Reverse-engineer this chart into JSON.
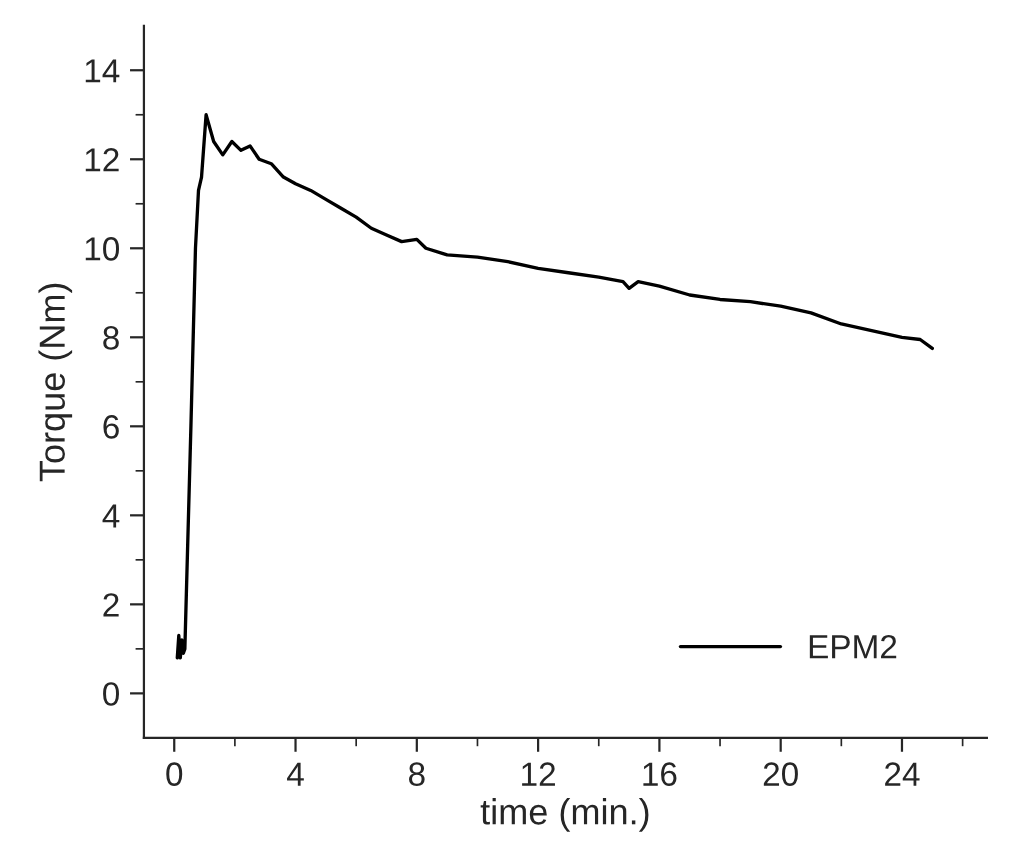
{
  "chart_data": {
    "type": "line",
    "xlabel": "time (min.)",
    "ylabel": "Torque (Nm)",
    "xlim": [
      -1,
      26.8
    ],
    "ylim": [
      -1,
      15
    ],
    "xticks": [
      0,
      4,
      8,
      12,
      16,
      20,
      24
    ],
    "yticks": [
      0,
      2,
      4,
      6,
      8,
      10,
      12,
      14
    ],
    "legend": "bottom right",
    "grid": false,
    "series": [
      {
        "name": "EPM2",
        "color": "#000000",
        "x": [
          0.1,
          0.15,
          0.2,
          0.25,
          0.3,
          0.35,
          0.55,
          0.7,
          0.8,
          0.9,
          1.05,
          1.3,
          1.6,
          1.9,
          2.2,
          2.5,
          2.8,
          3.2,
          3.6,
          4,
          4.5,
          5,
          5.5,
          6,
          6.5,
          7,
          7.5,
          8,
          8.3,
          9,
          10,
          11,
          12,
          13,
          14,
          14.8,
          15,
          15.3,
          16,
          17,
          18,
          19,
          20,
          21,
          22,
          23,
          24,
          24.6,
          25
        ],
        "values": [
          0.8,
          1.3,
          0.8,
          1.2,
          0.9,
          1.0,
          6.0,
          10.0,
          11.3,
          11.6,
          13.0,
          12.4,
          12.1,
          12.4,
          12.2,
          12.3,
          12.0,
          11.9,
          11.6,
          11.45,
          11.3,
          11.1,
          10.9,
          10.7,
          10.45,
          10.3,
          10.15,
          10.2,
          10.0,
          9.85,
          9.8,
          9.7,
          9.55,
          9.45,
          9.35,
          9.25,
          9.1,
          9.25,
          9.15,
          8.95,
          8.85,
          8.8,
          8.7,
          8.55,
          8.3,
          8.15,
          8.0,
          7.95,
          7.75
        ]
      }
    ]
  }
}
